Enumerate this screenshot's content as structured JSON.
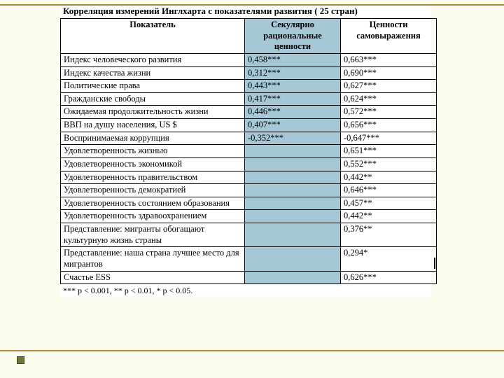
{
  "colors": {
    "slide_bg": "#fcfbef",
    "table_bg": "#ffffff",
    "highlight_col_bg": "#a6c7d6",
    "border": "#000000",
    "stripe": "#b08c3a",
    "bullet_fill": "#6a7a3c",
    "bullet_border": "#3c4a1c",
    "text": "#000000"
  },
  "title": "Корреляция измерений Инглхарта с показателями развития ( 25 стран)",
  "columns": [
    "Показатель",
    "Секулярно рациональные ценности",
    "Ценности самовыражения"
  ],
  "rows": [
    {
      "indicator": "Индекс человеческого развития",
      "a": "0,458***",
      "b": "0,663***"
    },
    {
      "indicator": "Индекс качества жизни",
      "a": "0,312***",
      "b": "0,690***"
    },
    {
      "indicator": "Политические права",
      "a": "0,443***",
      "b": "0,627***"
    },
    {
      "indicator": "Гражданские свободы",
      "a": "0,417***",
      "b": "0,624***"
    },
    {
      "indicator": "Ожидаемая продолжительность жизни",
      "a": "0,446***",
      "b": "0,572***"
    },
    {
      "indicator": "ВВП на душу населения, US $",
      "a": "0,407***",
      "b": "0,656***"
    },
    {
      "indicator": "Воспринимаемая коррупция",
      "a": "-0,352***",
      "b": "-0,647***"
    },
    {
      "indicator": "Удовлетворенность жизнью",
      "a": "",
      "b": "0,651***"
    },
    {
      "indicator": "Удовлетворенность экономикой",
      "a": "",
      "b": "0,552***"
    },
    {
      "indicator": "Удовлетворенность правительством",
      "a": "",
      "b": "0,442**"
    },
    {
      "indicator": "Удовлетворенность демократией",
      "a": "",
      "b": "0,646***"
    },
    {
      "indicator": "Удовлетворенность состоянием образования",
      "a": "",
      "b": "0,457**"
    },
    {
      "indicator": "Удовлетворенность здравоохранением",
      "a": "",
      "b": "0,442**"
    },
    {
      "indicator": "Представление: мигранты обогащают культурную жизнь страны",
      "a": "",
      "b": "0,376**"
    },
    {
      "indicator": "Представление: наша страна лучшее место для мигрантов",
      "a": "",
      "b": "0,294*"
    },
    {
      "indicator": "Счастье ESS",
      "a": "",
      "b": "0,626***"
    }
  ],
  "footnote": "*** p < 0.001, ** p < 0.01, * p < 0.05."
}
